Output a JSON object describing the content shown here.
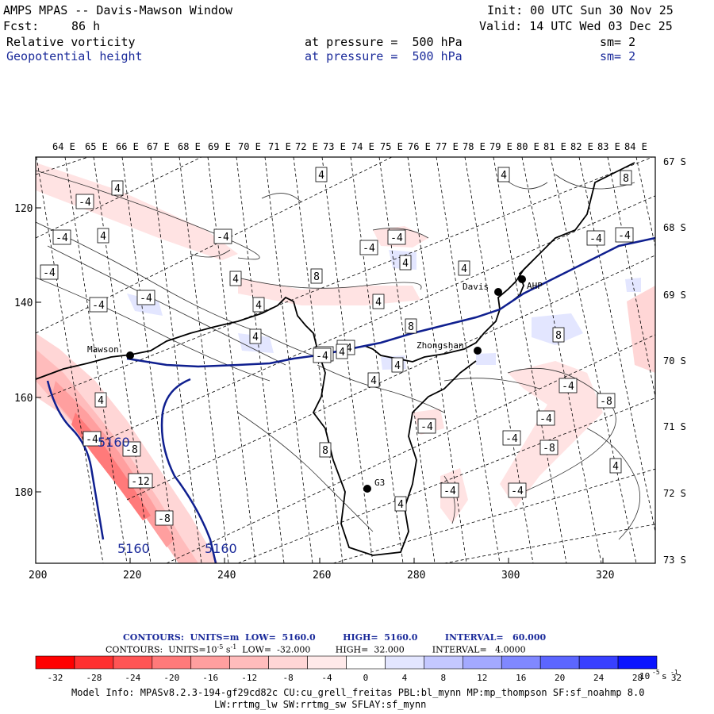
{
  "header": {
    "title": "AMPS MPAS -- Davis-Mawson Window",
    "init": "Init: 00 UTC Sun 30 Nov 25",
    "fcst_label": "Fcst:",
    "fcst_value": "86 h",
    "valid": "Valid: 14 UTC Wed 03 Dec 25",
    "field1": "Relative vorticity",
    "field1_level": "at pressure =  500 hPa",
    "field1_sm": "sm= 2",
    "field2": "Geopotential height",
    "field2_level": "at pressure =  500 hPa",
    "field2_sm": "sm= 2"
  },
  "top_lon_labels": [
    "64 E",
    "65 E",
    "66 E",
    "67 E",
    "68 E",
    "69 E",
    "70 E",
    "71 E",
    "72 E",
    "73 E",
    "74 E",
    "75 E",
    "76 E",
    "77 E",
    "78 E",
    "79 E",
    "80 E",
    "81 E",
    "82 E",
    "83 E",
    "84 E"
  ],
  "right_lat_labels": [
    "67 S",
    "68 S",
    "69 S",
    "70 S",
    "71 S",
    "72 S",
    "73 S"
  ],
  "left_y_labels": [
    "120",
    "140",
    "160",
    "180"
  ],
  "bottom_x_labels": [
    "200",
    "220",
    "240",
    "260",
    "280",
    "300",
    "320"
  ],
  "stations": [
    {
      "name": "Mawson"
    },
    {
      "name": "Davis"
    },
    {
      "name": "AHP"
    },
    {
      "name": "Zhongshan"
    },
    {
      "name": "G3"
    }
  ],
  "contour_labels": {
    "vorticity": [
      "4",
      "-4",
      "4",
      "-4",
      "-4",
      "4",
      "-4",
      "-4",
      "-4",
      "4",
      "4",
      "8",
      "-4",
      "4",
      "4",
      "-4",
      "4",
      "8",
      "-4",
      "-4",
      "4",
      "8",
      "4",
      "4",
      "8",
      "-4",
      "4",
      "-4",
      "8",
      "-4",
      "-4",
      "-8",
      "-4",
      "4",
      "-4",
      "-8",
      "4",
      "-4",
      "-4",
      "4",
      "-4",
      "-8",
      "-12",
      "-8",
      "4",
      "-4"
    ],
    "height": [
      "5160",
      "5160",
      "5160"
    ]
  },
  "legend": {
    "contours1": "CONTOURS:  UNITS=m  LOW=  5160.0         HIGH=  5160.0         INTERVAL=   60.000",
    "contours2_prefix": "CONTOURS:  UNITS=10",
    "contours2_exp": "-5",
    "contours2_suffix": " s",
    "contours2_exp2": "-1",
    "contours2_rest": "  LOW=  -32.000         HIGH=  32.000          INTERVAL=   4.0000",
    "colorbar_labels": [
      "-32",
      "-28",
      "-24",
      "-20",
      "-16",
      "-12",
      "-8",
      "-4",
      "0",
      "4",
      "8",
      "12",
      "16",
      "20",
      "24",
      "28",
      "32"
    ],
    "colorbar_units": "10",
    "colorbar_units_exp": "-5",
    "colorbar_units_s": " s",
    "colorbar_units_exp2": "-1",
    "colorbar_colors": [
      "#ff0000",
      "#ff3030",
      "#ff5555",
      "#ff7a7a",
      "#ff9f9f",
      "#ffbcbc",
      "#ffd6d6",
      "#ffeaea",
      "#ffffff",
      "#ffffff",
      "#e3e6ff",
      "#c4c8ff",
      "#a3a9ff",
      "#8088ff",
      "#5c66ff",
      "#3840ff",
      "#0b14ff"
    ]
  },
  "model_info_1": "Model Info: MPASv8.2.3-194-gf29cd82c CU:cu_grell_freitas PBL:bl_mynn MP:mp_thompson SF:sf_noahmp 8.0",
  "model_info_2": "LW:rrtmg_lw SW:rrtmg_sw SFLAY:sf_mynn"
}
